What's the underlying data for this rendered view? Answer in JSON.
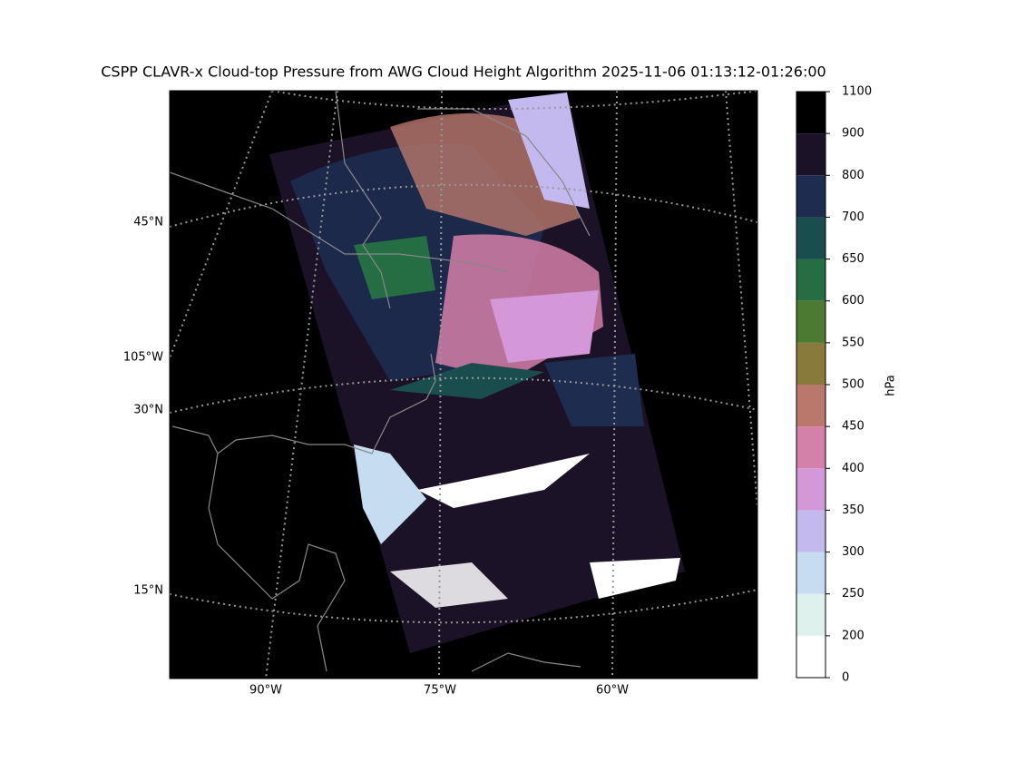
{
  "title": "CSPP CLAVR-x Cloud-top Pressure from AWG Cloud Height Algorithm 2025-11-06 01:13:12-01:26:00",
  "map": {
    "lat_labels": [
      "45°N",
      "30°N",
      "15°N"
    ],
    "lon_labels": [
      "105°W",
      "90°W",
      "75°W",
      "60°W"
    ]
  },
  "colorbar": {
    "label": "hPa",
    "boundaries": [
      0,
      200,
      250,
      300,
      350,
      400,
      450,
      500,
      550,
      600,
      650,
      700,
      800,
      900,
      1100
    ],
    "colors": [
      "#ffffff",
      "#dff1ec",
      "#c6dcf0",
      "#c4b9ef",
      "#d497d8",
      "#d580a8",
      "#b9786b",
      "#877a3b",
      "#4d7a32",
      "#256e44",
      "#1a4d4e",
      "#1d2c4f",
      "#1c1228",
      "#000000"
    ]
  }
}
